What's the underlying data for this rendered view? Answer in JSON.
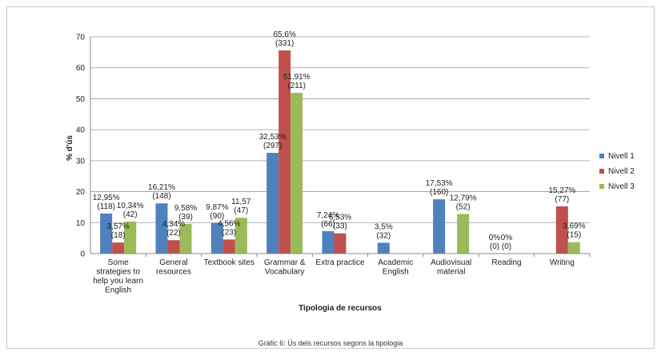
{
  "chart_data": {
    "type": "bar",
    "categories": [
      [
        "Some",
        "strategies to",
        "help you learn",
        "English"
      ],
      [
        "General",
        "resources"
      ],
      [
        "Textbook sites"
      ],
      [
        "Grammar &",
        "Vocabulary"
      ],
      [
        "Extra practice"
      ],
      [
        "Academic",
        "English"
      ],
      [
        "Audiovisual",
        "material"
      ],
      [
        "Reading"
      ],
      [
        "Writing"
      ]
    ],
    "series": [
      {
        "name": "Nivell 1",
        "color": "#4f81bd",
        "values": [
          12.95,
          16.21,
          9.87,
          32.53,
          7.24,
          3.5,
          17.53,
          0,
          null
        ],
        "labels": [
          [
            "12,95%",
            "(118)"
          ],
          [
            "16,21%",
            "(148)"
          ],
          [
            "9,87%",
            "(90)"
          ],
          [
            "32,53%",
            "(297)"
          ],
          [
            "7,24%",
            "(66)"
          ],
          [
            "3,5%",
            "(32)"
          ],
          [
            "17,53%",
            "(160)"
          ],
          [
            "0%",
            "(0)"
          ],
          null
        ]
      },
      {
        "name": "Nivell 2",
        "color": "#c0504d",
        "values": [
          3.57,
          4.34,
          4.56,
          65.6,
          6.53,
          null,
          null,
          0,
          15.27
        ],
        "labels": [
          [
            "3,57%",
            "(18)"
          ],
          [
            "4,34%",
            "(22)"
          ],
          [
            "4,56%",
            "(23)"
          ],
          [
            "65,6%",
            "(331)"
          ],
          [
            "6,53%",
            "(33)"
          ],
          null,
          null,
          [
            "0%",
            "(0)"
          ],
          [
            "15,27%",
            "(77)"
          ]
        ]
      },
      {
        "name": "Nivell 3",
        "color": "#9bbb59",
        "values": [
          10.34,
          9.58,
          11.57,
          51.91,
          null,
          null,
          12.79,
          null,
          3.69
        ],
        "labels": [
          [
            "10,34%",
            "(42)"
          ],
          [
            "9,58%",
            "(39)"
          ],
          [
            "11,57",
            "(47)"
          ],
          [
            "51,91%",
            "(211)"
          ],
          null,
          null,
          [
            "12,79%",
            "(52)"
          ],
          null,
          [
            "3,69%",
            "(15)"
          ]
        ]
      }
    ],
    "ylabel": "% d'ús",
    "xlabel": "Tipologia de recursos",
    "ylim": [
      0,
      70
    ],
    "yticks": [
      "0",
      "10",
      "20",
      "30",
      "40",
      "50",
      "60",
      "70"
    ],
    "grid": true,
    "legend_position": "right"
  },
  "caption": "Gràfic 6: Ús dels recursos segons la tipologia"
}
